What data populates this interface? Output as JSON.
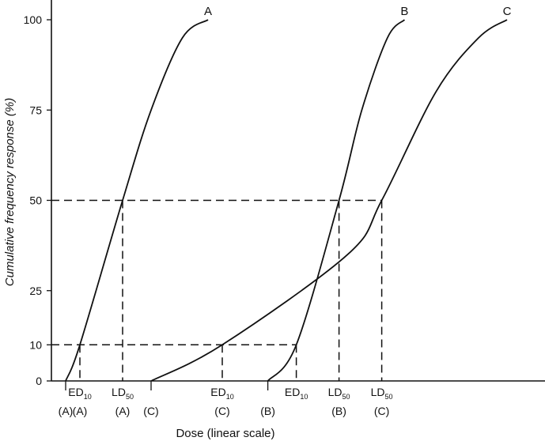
{
  "chart_data": {
    "type": "line",
    "title": "",
    "xlabel": "Dose (linear scale)",
    "ylabel": "Cumulative frequency response (%)",
    "ylim": [
      0,
      100
    ],
    "yticks": [
      0,
      10,
      25,
      50,
      75,
      100
    ],
    "grid": false,
    "x_scale": "linear",
    "series": [
      {
        "name": "A",
        "points": [
          [
            0.5,
            0
          ],
          [
            1.0,
            10
          ],
          [
            2.5,
            50
          ],
          [
            3.5,
            75
          ],
          [
            4.6,
            95
          ],
          [
            5.5,
            100
          ]
        ]
      },
      {
        "name": "B",
        "points": [
          [
            7.6,
            0
          ],
          [
            8.6,
            10
          ],
          [
            10.1,
            50
          ],
          [
            10.9,
            75
          ],
          [
            11.8,
            95
          ],
          [
            12.4,
            100
          ]
        ]
      },
      {
        "name": "C",
        "points": [
          [
            3.5,
            0
          ],
          [
            6.0,
            10
          ],
          [
            10.4,
            35
          ],
          [
            11.6,
            50
          ],
          [
            13.5,
            80
          ],
          [
            15.0,
            95
          ],
          [
            16.0,
            100
          ]
        ]
      }
    ],
    "markers": [
      {
        "main": "",
        "sub": "",
        "group": "(A)"
      },
      {
        "main": "ED",
        "sub": "10",
        "group": "(A)"
      },
      {
        "main": "LD",
        "sub": "50",
        "group": "(A)"
      },
      {
        "main": "",
        "sub": "",
        "group": "(C)"
      },
      {
        "main": "ED",
        "sub": "10",
        "group": "(C)"
      },
      {
        "main": "",
        "sub": "",
        "group": "(B)"
      },
      {
        "main": "ED",
        "sub": "10",
        "group": ""
      },
      {
        "main": "LD",
        "sub": "50",
        "group": "(B)"
      },
      {
        "main": "LD",
        "sub": "50",
        "group": "(C)"
      }
    ]
  }
}
